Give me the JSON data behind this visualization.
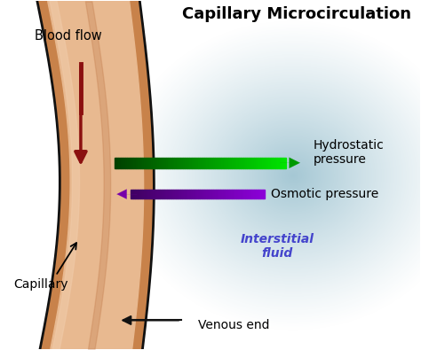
{
  "title": "Capillary Microcirculation",
  "title_fontsize": 13,
  "title_fontweight": "bold",
  "background_color": "#ffffff",
  "labels": {
    "blood_flow": "Blood flow",
    "capillary": "Capillary",
    "hydrostatic": "Hydrostatic\npressure",
    "osmotic": "Osmotic pressure",
    "interstitial": "Interstitial\nfluid",
    "venous": "Venous end"
  },
  "capillary": {
    "color_outer": "#c8824a",
    "color_inner": "#e8b990",
    "color_highlight": "#f0caa8",
    "outline_color": "#111111"
  },
  "blue_halo": {
    "color": "#8db8c8"
  },
  "arrows": {
    "blood_flow_color": "#8b1010",
    "hydrostatic_color": "#008800",
    "osmotic_color": "#880099",
    "venous_color": "#111111"
  },
  "interstitial_color": "#4444cc"
}
